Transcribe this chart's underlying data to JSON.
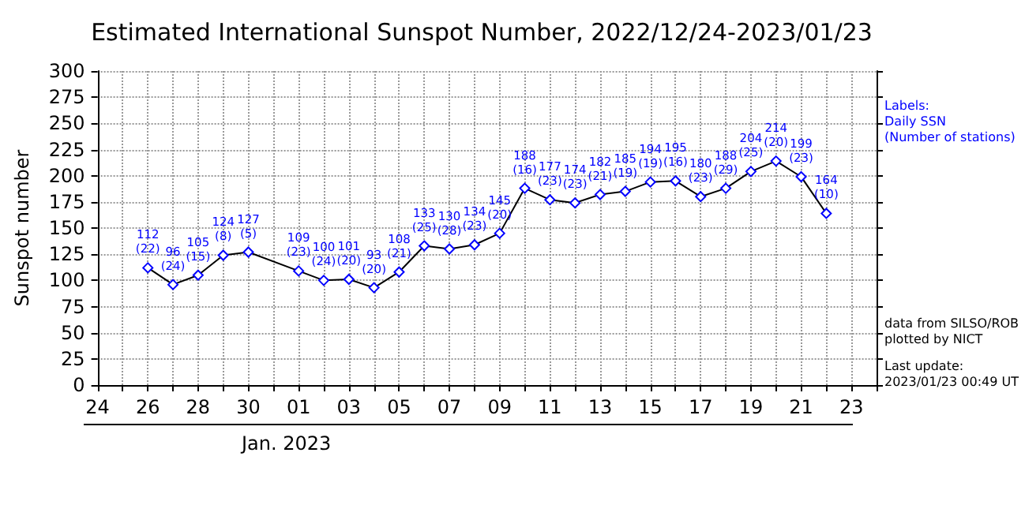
{
  "chart_data": {
    "type": "line",
    "title": "Estimated International Sunspot Number, 2022/12/24-2023/01/23",
    "xlabel": "Jan. 2023",
    "ylabel": "Sunspot number",
    "x": [
      "2022-12-26",
      "2022-12-27",
      "2022-12-28",
      "2022-12-29",
      "2022-12-30",
      "2023-01-01",
      "2023-01-02",
      "2023-01-03",
      "2023-01-04",
      "2023-01-05",
      "2023-01-06",
      "2023-01-07",
      "2023-01-08",
      "2023-01-09",
      "2023-01-10",
      "2023-01-11",
      "2023-01-12",
      "2023-01-13",
      "2023-01-14",
      "2023-01-15",
      "2023-01-16",
      "2023-01-17",
      "2023-01-18",
      "2023-01-19",
      "2023-01-20",
      "2023-01-21",
      "2023-01-22"
    ],
    "series": [
      {
        "color": "#000000",
        "values": [
          112,
          96,
          105,
          124,
          127,
          109,
          100,
          101,
          93,
          108,
          133,
          130,
          134,
          145,
          188,
          177,
          174,
          182,
          185,
          194,
          195,
          180,
          188,
          204,
          214,
          199,
          164
        ],
        "value_labels": [
          "112\n(22)",
          "96\n(24)",
          "105\n(15)",
          "124\n(8)",
          "127\n(5)",
          "109\n(23)",
          "100\n(24)",
          "101\n(20)",
          "93\n(20)",
          "108\n(21)",
          "133\n(25)",
          "130\n(28)",
          "134\n(23)",
          "145\n(20)",
          "188\n(16)",
          "177\n(23)",
          "174\n(23)",
          "182\n(21)",
          "185\n(19)",
          "194\n(19)",
          "195\n(16)",
          "180\n(23)",
          "188\n(29)",
          "204\n(25)",
          "214\n(20)",
          "199\n(23)",
          "164\n(10)"
        ]
      }
    ],
    "xlim": [
      "2022-12-24",
      "2023-01-24"
    ],
    "xticks": [
      {
        "value": "2022-12-24",
        "label": "24"
      },
      {
        "value": "2022-12-25",
        "label": null
      },
      {
        "value": "2022-12-26",
        "label": "26"
      },
      {
        "value": "2022-12-27",
        "label": null
      },
      {
        "value": "2022-12-28",
        "label": "28"
      },
      {
        "value": "2022-12-29",
        "label": null
      },
      {
        "value": "2022-12-30",
        "label": "30"
      },
      {
        "value": "2022-12-31",
        "label": null
      },
      {
        "value": "2023-01-01",
        "label": "01"
      },
      {
        "value": "2023-01-02",
        "label": null
      },
      {
        "value": "2023-01-03",
        "label": "03"
      },
      {
        "value": "2023-01-04",
        "label": null
      },
      {
        "value": "2023-01-05",
        "label": "05"
      },
      {
        "value": "2023-01-06",
        "label": null
      },
      {
        "value": "2023-01-07",
        "label": "07"
      },
      {
        "value": "2023-01-08",
        "label": null
      },
      {
        "value": "2023-01-09",
        "label": "09"
      },
      {
        "value": "2023-01-10",
        "label": null
      },
      {
        "value": "2023-01-11",
        "label": "11"
      },
      {
        "value": "2023-01-12",
        "label": null
      },
      {
        "value": "2023-01-13",
        "label": "13"
      },
      {
        "value": "2023-01-14",
        "label": null
      },
      {
        "value": "2023-01-15",
        "label": "15"
      },
      {
        "value": "2023-01-16",
        "label": null
      },
      {
        "value": "2023-01-17",
        "label": "17"
      },
      {
        "value": "2023-01-18",
        "label": null
      },
      {
        "value": "2023-01-19",
        "label": "19"
      },
      {
        "value": "2023-01-20",
        "label": null
      },
      {
        "value": "2023-01-21",
        "label": "21"
      },
      {
        "value": "2023-01-22",
        "label": null
      },
      {
        "value": "2023-01-23",
        "label": "23"
      },
      {
        "value": "2023-01-24",
        "label": null
      }
    ],
    "ylim": [
      0,
      300
    ],
    "yticks": [
      0,
      25,
      50,
      75,
      100,
      125,
      150,
      175,
      200,
      225,
      250,
      275,
      300
    ],
    "grid": true,
    "marker": "diamond",
    "line_style": "solid",
    "annotations": [
      "Labels:\nDaily SSN\n(Number of stations)",
      "data from SILSO/ROB\nplotted by NICT",
      "Last update:\n2023/01/23 00:49 UT"
    ]
  }
}
